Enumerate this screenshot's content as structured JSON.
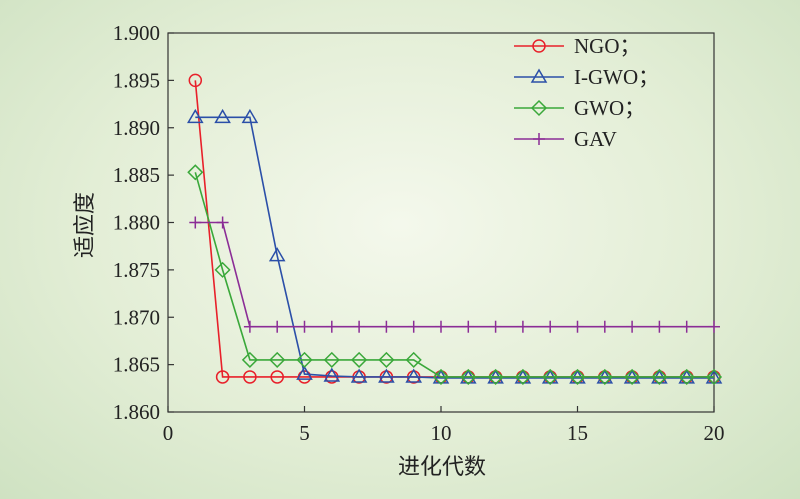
{
  "chart_data": {
    "type": "line",
    "title": "",
    "xlabel": "进化代数",
    "ylabel": "适应度",
    "xlim": [
      0,
      20
    ],
    "ylim": [
      1.86,
      1.9
    ],
    "xticks": [
      "0",
      "5",
      "10",
      "15",
      "20"
    ],
    "yticks": [
      "1.860",
      "1.865",
      "1.870",
      "1.875",
      "1.880",
      "1.885",
      "1.890",
      "1.895",
      "1.900"
    ],
    "grid": false,
    "legend": "top-right",
    "series": [
      {
        "name": "NGO；",
        "color": "#e8202a",
        "marker": "circle",
        "x": [
          1,
          2,
          3,
          4,
          5,
          6,
          7,
          8,
          9,
          10,
          11,
          12,
          13,
          14,
          15,
          16,
          17,
          18,
          19,
          20
        ],
        "y": [
          1.895,
          1.8637,
          1.8637,
          1.8637,
          1.8637,
          1.8637,
          1.8637,
          1.8637,
          1.8637,
          1.8637,
          1.8637,
          1.8637,
          1.8637,
          1.8637,
          1.8637,
          1.8637,
          1.8637,
          1.8637,
          1.8637,
          1.8637
        ]
      },
      {
        "name": "I-GWO；",
        "color": "#2b4fa8",
        "marker": "triangle",
        "x": [
          1,
          2,
          3,
          4,
          5,
          6,
          7,
          8,
          9,
          10,
          11,
          12,
          13,
          14,
          15,
          16,
          17,
          18,
          19,
          20
        ],
        "y": [
          1.8911,
          1.8911,
          1.8911,
          1.8765,
          1.864,
          1.8638,
          1.8637,
          1.8637,
          1.8637,
          1.8636,
          1.8636,
          1.8636,
          1.8636,
          1.8636,
          1.8636,
          1.8636,
          1.8636,
          1.8636,
          1.8636,
          1.8636
        ]
      },
      {
        "name": "GWO；",
        "color": "#3aa83a",
        "marker": "diamond",
        "x": [
          1,
          2,
          3,
          4,
          5,
          6,
          7,
          8,
          9,
          10,
          11,
          12,
          13,
          14,
          15,
          16,
          17,
          18,
          19,
          20
        ],
        "y": [
          1.8853,
          1.875,
          1.8655,
          1.8655,
          1.8655,
          1.8655,
          1.8655,
          1.8655,
          1.8655,
          1.8637,
          1.8637,
          1.8637,
          1.8637,
          1.8637,
          1.8637,
          1.8637,
          1.8637,
          1.8637,
          1.8637,
          1.8637
        ]
      },
      {
        "name": "GAV",
        "color": "#8b2d96",
        "marker": "plus",
        "x": [
          1,
          2,
          3,
          4,
          5,
          6,
          7,
          8,
          9,
          10,
          11,
          12,
          13,
          14,
          15,
          16,
          17,
          18,
          19,
          20
        ],
        "y": [
          1.88,
          1.88,
          1.869,
          1.869,
          1.869,
          1.869,
          1.869,
          1.869,
          1.869,
          1.869,
          1.869,
          1.869,
          1.869,
          1.869,
          1.869,
          1.869,
          1.869,
          1.869,
          1.869,
          1.869
        ]
      }
    ]
  }
}
